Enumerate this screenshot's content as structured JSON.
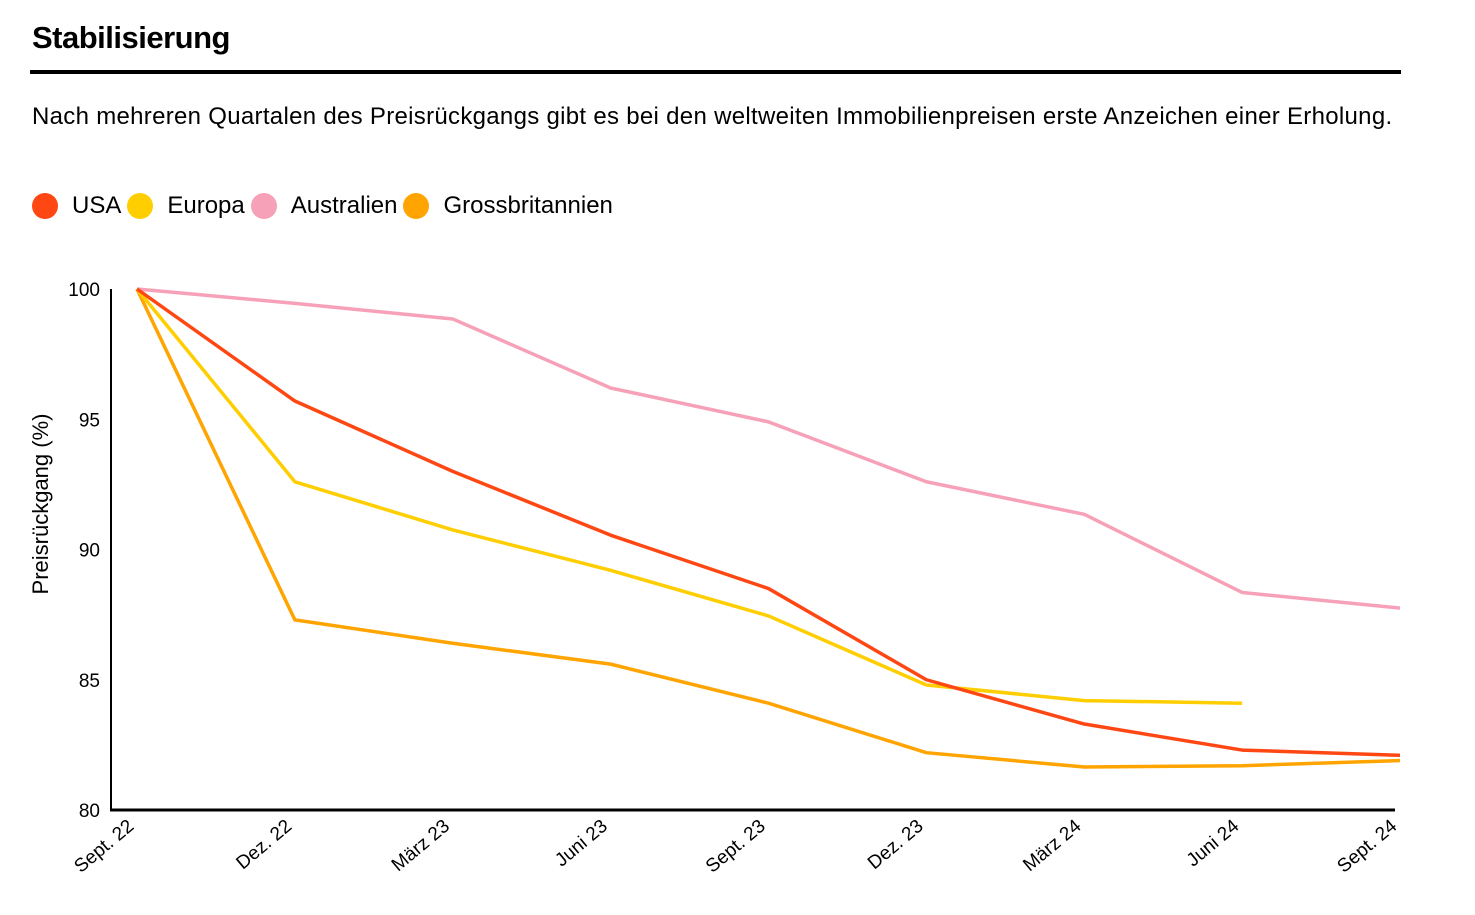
{
  "title": "Stabilisierung",
  "subtitle": "Nach mehreren Quartalen des Preisrückgangs gibt es bei den weltweiten Immobilienpreisen erste Anzeichen einer Erholung.",
  "chart_data": {
    "type": "line",
    "title": "Stabilisierung",
    "xlabel": "",
    "ylabel": "Preisrückgang (%)",
    "ylim": [
      80,
      100
    ],
    "yticks": [
      "80",
      "85",
      "90",
      "95",
      "100"
    ],
    "categories": [
      "Sept. 22",
      "Dez. 22",
      "März 23",
      "Juni 23",
      "Sept. 23",
      "Dez. 23",
      "März 24",
      "Juni 24",
      "Sept. 24"
    ],
    "grid": false,
    "legend_position": "top-left",
    "series": [
      {
        "name": "USA",
        "color": "#FF4713",
        "values": [
          100,
          95.7,
          93.0,
          90.55,
          88.5,
          85.0,
          83.3,
          82.3,
          82.1
        ]
      },
      {
        "name": "Europa",
        "color": "#FFCE00",
        "values": [
          100,
          92.6,
          90.75,
          89.2,
          87.45,
          84.8,
          84.2,
          84.1,
          null
        ]
      },
      {
        "name": "Australien",
        "color": "#F7A1B9",
        "values": [
          100,
          99.45,
          98.85,
          96.2,
          94.9,
          92.6,
          91.35,
          88.35,
          87.75
        ]
      },
      {
        "name": "Grossbritannien",
        "color": "#FFA400",
        "values": [
          100,
          87.3,
          86.4,
          85.6,
          84.1,
          82.2,
          81.65,
          81.7,
          81.9
        ]
      }
    ]
  }
}
